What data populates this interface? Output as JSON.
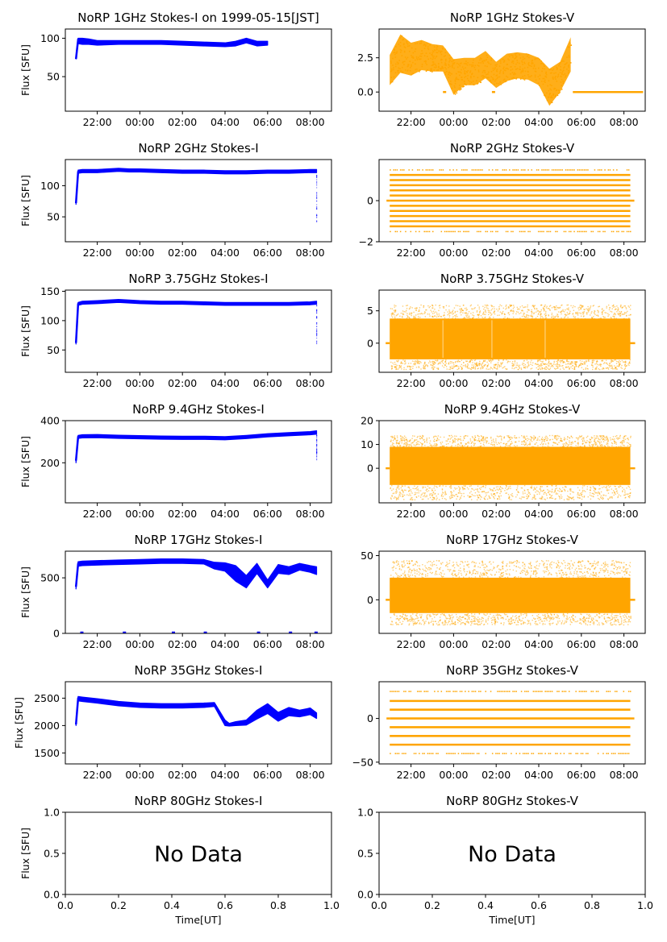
{
  "figure": {
    "series_colors": {
      "stokes_i": "#0000ff",
      "stokes_v": "#ffa500"
    },
    "ylabel": "Flux [SFU]",
    "xlabel": "Time[UT]"
  },
  "chart_data": [
    {
      "id": "p1i",
      "type": "scatter",
      "title": "NoRP 1GHz Stokes-I on 1999-05-15[JST]",
      "ylabel": "Flux [SFU]",
      "xlabel": "",
      "color": "#0000ff",
      "time_range_hours": [
        20.5,
        33.0
      ],
      "ylim": [
        5,
        112
      ],
      "yticks": [
        50,
        100
      ],
      "ytick_labels": [
        "50",
        "100"
      ],
      "xtick_labels": [
        "22:00",
        "00:00",
        "02:00",
        "04:00",
        "06:00",
        "08:00"
      ],
      "x": [
        21.0,
        21.1,
        21.3,
        21.6,
        22.0,
        23.0,
        24.0,
        25.0,
        26.0,
        27.0,
        28.0,
        28.5,
        29.0,
        29.5,
        30.0
      ],
      "y": [
        73,
        98,
        97,
        96,
        94,
        95,
        95,
        95,
        94,
        93,
        92,
        93,
        98,
        93,
        93
      ],
      "lower": [
        73,
        93,
        92,
        92,
        91,
        92,
        92,
        92,
        91,
        90,
        89,
        90,
        94,
        90,
        91
      ],
      "upper": [
        75,
        100,
        100,
        99,
        97,
        97,
        97,
        97,
        96,
        95,
        94,
        96,
        100,
        96,
        96
      ]
    },
    {
      "id": "p1v",
      "type": "scatter",
      "title": "NoRP 1GHz Stokes-V",
      "ylabel": "",
      "xlabel": "",
      "color": "#ffa500",
      "time_range_hours": [
        20.5,
        33.0
      ],
      "ylim": [
        -1.4,
        4.6
      ],
      "yticks": [
        0.0,
        2.5
      ],
      "ytick_labels": [
        "0.0",
        "2.5"
      ],
      "xtick_labels": [
        "22:00",
        "00:00",
        "02:00",
        "04:00",
        "06:00",
        "08:00"
      ],
      "x": [
        21.0,
        21.5,
        22.0,
        22.5,
        23.0,
        23.5,
        24.0,
        24.5,
        25.0,
        25.5,
        26.0,
        26.5,
        27.0,
        27.5,
        28.0,
        28.5,
        29.0,
        29.5
      ],
      "y": [
        1.5,
        2.7,
        2.2,
        2.6,
        2.5,
        2.4,
        1.0,
        1.5,
        1.5,
        2.0,
        1.2,
        1.8,
        1.9,
        1.8,
        1.5,
        0.5,
        1.0,
        2.5
      ],
      "lower": [
        0.5,
        1.4,
        1.2,
        1.6,
        1.5,
        1.5,
        -0.2,
        0.5,
        0.5,
        1.0,
        0.3,
        0.8,
        1.0,
        0.9,
        0.5,
        -1.0,
        0.0,
        1.5
      ],
      "upper": [
        2.7,
        4.2,
        3.6,
        3.8,
        3.5,
        3.4,
        2.4,
        2.5,
        2.5,
        3.0,
        2.2,
        2.8,
        2.9,
        2.8,
        2.5,
        1.7,
        2.2,
        4.0
      ],
      "flat_value": 0.0,
      "flat_segments": [
        [
          29.6,
          32.9
        ]
      ],
      "dashes": [
        23.5,
        25.8
      ]
    },
    {
      "id": "p2i",
      "type": "scatter",
      "title": "NoRP 2GHz Stokes-I",
      "ylabel": "Flux [SFU]",
      "xlabel": "",
      "color": "#0000ff",
      "time_range_hours": [
        20.5,
        33.0
      ],
      "ylim": [
        10,
        142
      ],
      "yticks": [
        50,
        100
      ],
      "ytick_labels": [
        "50",
        "100"
      ],
      "xtick_labels": [
        "22:00",
        "00:00",
        "02:00",
        "04:00",
        "06:00",
        "08:00"
      ],
      "x": [
        21.0,
        21.1,
        21.3,
        22.0,
        23.0,
        23.5,
        24.0,
        25.0,
        26.0,
        27.0,
        28.0,
        29.0,
        30.0,
        31.0,
        32.0,
        32.3
      ],
      "y": [
        72,
        122,
        123,
        123,
        125,
        124,
        124,
        123,
        122,
        122,
        121,
        121,
        122,
        122,
        123,
        123
      ],
      "lower": [
        70,
        120,
        121,
        121,
        123,
        122,
        122,
        121,
        120,
        120,
        119,
        119,
        120,
        120,
        121,
        121
      ],
      "upper": [
        75,
        125,
        126,
        126,
        128,
        127,
        127,
        126,
        125,
        125,
        124,
        124,
        125,
        125,
        126,
        126
      ],
      "outliers": {
        "x": 32.3,
        "from": 42,
        "to": 120
      }
    },
    {
      "id": "p2v",
      "type": "scatter",
      "title": "NoRP 2GHz Stokes-V",
      "ylabel": "",
      "xlabel": "",
      "color": "#ffa500",
      "time_range_hours": [
        20.5,
        33.0
      ],
      "ylim": [
        -2.0,
        2.0
      ],
      "yticks": [
        -2,
        0
      ],
      "ytick_labels": [
        "−2",
        "0"
      ],
      "xtick_labels": [
        "22:00",
        "00:00",
        "02:00",
        "04:00",
        "06:00",
        "08:00"
      ],
      "levels": [
        -1.25,
        -1.0,
        -0.75,
        -0.5,
        -0.25,
        0.0,
        0.25,
        0.5,
        0.75,
        1.0,
        1.25
      ],
      "sparse_levels": [
        -1.5,
        1.5
      ],
      "x_range": [
        21.0,
        32.3
      ]
    },
    {
      "id": "p3i",
      "type": "scatter",
      "title": "NoRP 3.75GHz Stokes-I",
      "ylabel": "Flux [SFU]",
      "xlabel": "",
      "color": "#0000ff",
      "time_range_hours": [
        20.5,
        33.0
      ],
      "ylim": [
        12,
        152
      ],
      "yticks": [
        50,
        100,
        150
      ],
      "ytick_labels": [
        "50",
        "100",
        "150"
      ],
      "xtick_labels": [
        "22:00",
        "00:00",
        "02:00",
        "04:00",
        "06:00",
        "08:00"
      ],
      "x": [
        21.0,
        21.1,
        21.3,
        22.0,
        23.0,
        24.0,
        25.0,
        26.0,
        27.0,
        28.0,
        29.0,
        30.0,
        31.0,
        32.0,
        32.3
      ],
      "y": [
        62,
        128,
        130,
        131,
        133,
        131,
        130,
        130,
        129,
        128,
        128,
        128,
        128,
        129,
        130
      ],
      "lower": [
        60,
        126,
        128,
        129,
        131,
        129,
        128,
        128,
        127,
        126,
        126,
        126,
        126,
        127,
        128
      ],
      "upper": [
        65,
        131,
        133,
        134,
        136,
        134,
        133,
        133,
        132,
        131,
        131,
        131,
        131,
        132,
        133
      ],
      "outliers": {
        "x": 32.3,
        "from": 60,
        "to": 128
      }
    },
    {
      "id": "p3v",
      "type": "scatter",
      "title": "NoRP 3.75GHz Stokes-V",
      "ylabel": "",
      "xlabel": "",
      "color": "#ffa500",
      "time_range_hours": [
        20.5,
        33.0
      ],
      "ylim": [
        -4.5,
        8.2
      ],
      "yticks": [
        0,
        5
      ],
      "ytick_labels": [
        "0",
        "5"
      ],
      "xtick_labels": [
        "22:00",
        "00:00",
        "02:00",
        "04:00",
        "06:00",
        "08:00"
      ],
      "x_range": [
        21.0,
        32.3
      ],
      "band": [
        -2.5,
        3.8
      ],
      "spread": [
        -4.0,
        6.0
      ],
      "gaps": [
        23.5,
        25.8,
        28.3
      ]
    },
    {
      "id": "p4i",
      "type": "scatter",
      "title": "NoRP 9.4GHz Stokes-I",
      "ylabel": "Flux [SFU]",
      "xlabel": "",
      "color": "#0000ff",
      "time_range_hours": [
        20.5,
        33.0
      ],
      "ylim": [
        10,
        400
      ],
      "yticks": [
        200,
        400
      ],
      "ytick_labels": [
        "200",
        "400"
      ],
      "xtick_labels": [
        "22:00",
        "00:00",
        "02:00",
        "04:00",
        "06:00",
        "08:00"
      ],
      "x": [
        21.0,
        21.1,
        21.3,
        22.0,
        23.0,
        24.0,
        25.0,
        26.0,
        27.0,
        28.0,
        29.0,
        30.0,
        31.0,
        32.0,
        32.3
      ],
      "y": [
        210,
        322,
        325,
        326,
        323,
        321,
        319,
        318,
        318,
        316,
        322,
        330,
        335,
        340,
        343
      ],
      "lower": [
        200,
        316,
        318,
        319,
        316,
        314,
        312,
        311,
        311,
        309,
        315,
        323,
        328,
        333,
        336
      ],
      "upper": [
        225,
        330,
        333,
        334,
        331,
        329,
        327,
        326,
        326,
        324,
        330,
        338,
        343,
        348,
        352
      ],
      "outliers": {
        "x": 32.3,
        "from": 215,
        "to": 335
      }
    },
    {
      "id": "p4v",
      "type": "scatter",
      "title": "NoRP 9.4GHz Stokes-V",
      "ylabel": "",
      "xlabel": "",
      "color": "#ffa500",
      "time_range_hours": [
        20.5,
        33.0
      ],
      "ylim": [
        -14.5,
        20
      ],
      "yticks": [
        0,
        10,
        20
      ],
      "ytick_labels": [
        "0",
        "10",
        "20"
      ],
      "xtick_labels": [
        "22:00",
        "00:00",
        "02:00",
        "04:00",
        "06:00",
        "08:00"
      ],
      "x_range": [
        21.0,
        32.3
      ],
      "band": [
        -7,
        9
      ],
      "spread": [
        -13,
        14
      ],
      "gaps": []
    },
    {
      "id": "p5i",
      "type": "scatter",
      "title": "NoRP 17GHz Stokes-I",
      "ylabel": "Flux [SFU]",
      "xlabel": "",
      "color": "#0000ff",
      "time_range_hours": [
        20.5,
        33.0
      ],
      "ylim": [
        0,
        740
      ],
      "yticks": [
        0,
        500
      ],
      "ytick_labels": [
        "0",
        "500"
      ],
      "xtick_labels": [
        "22:00",
        "00:00",
        "02:00",
        "04:00",
        "06:00",
        "08:00"
      ],
      "x": [
        21.0,
        21.1,
        21.3,
        22.0,
        23.0,
        24.0,
        25.0,
        26.0,
        27.0,
        27.5,
        28.0,
        28.5,
        29.0,
        29.5,
        30.0,
        30.5,
        31.0,
        31.5,
        32.0,
        32.3
      ],
      "y": [
        420,
        625,
        630,
        635,
        640,
        645,
        650,
        650,
        645,
        610,
        600,
        540,
        460,
        590,
        440,
        580,
        560,
        600,
        580,
        560
      ],
      "lower": [
        400,
        605,
        610,
        615,
        620,
        625,
        630,
        630,
        625,
        580,
        560,
        470,
        410,
        540,
        410,
        540,
        530,
        570,
        550,
        530
      ],
      "upper": [
        440,
        645,
        650,
        655,
        660,
        665,
        670,
        670,
        665,
        640,
        635,
        610,
        520,
        630,
        480,
        620,
        600,
        630,
        610,
        600
      ],
      "zero_dashes": [
        21.2,
        23.2,
        25.5,
        27.0,
        29.5,
        31.0,
        32.2
      ]
    },
    {
      "id": "p5v",
      "type": "scatter",
      "title": "NoRP 17GHz Stokes-V",
      "ylabel": "",
      "xlabel": "",
      "color": "#ffa500",
      "time_range_hours": [
        20.5,
        33.0
      ],
      "ylim": [
        -38,
        55
      ],
      "yticks": [
        0,
        50
      ],
      "ytick_labels": [
        "0",
        "50"
      ],
      "xtick_labels": [
        "22:00",
        "00:00",
        "02:00",
        "04:00",
        "06:00",
        "08:00"
      ],
      "x_range": [
        21.0,
        32.3
      ],
      "band": [
        -15,
        25
      ],
      "spread": [
        -28,
        45
      ],
      "gaps": []
    },
    {
      "id": "p6i",
      "type": "scatter",
      "title": "NoRP 35GHz Stokes-I",
      "ylabel": "Flux [SFU]",
      "xlabel": "",
      "color": "#0000ff",
      "time_range_hours": [
        20.5,
        33.0
      ],
      "ylim": [
        1300,
        2800
      ],
      "yticks": [
        1500,
        2000,
        2500
      ],
      "ytick_labels": [
        "1500",
        "2000",
        "2500"
      ],
      "xtick_labels": [
        "22:00",
        "00:00",
        "02:00",
        "04:00",
        "06:00",
        "08:00"
      ],
      "x": [
        21.0,
        21.1,
        21.3,
        22.0,
        23.0,
        24.0,
        25.0,
        26.0,
        27.0,
        27.5,
        28.0,
        28.2,
        28.5,
        29.0,
        29.5,
        30.0,
        30.5,
        31.0,
        31.5,
        32.0,
        32.3
      ],
      "y": [
        2020,
        2490,
        2480,
        2450,
        2400,
        2370,
        2360,
        2360,
        2370,
        2380,
        2050,
        2010,
        2030,
        2050,
        2200,
        2300,
        2150,
        2250,
        2220,
        2260,
        2180
      ],
      "lower": [
        2000,
        2450,
        2440,
        2410,
        2360,
        2330,
        2320,
        2320,
        2330,
        2350,
        2000,
        1990,
        2000,
        2010,
        2120,
        2220,
        2080,
        2180,
        2160,
        2200,
        2130
      ],
      "upper": [
        2040,
        2530,
        2520,
        2490,
        2440,
        2410,
        2400,
        2400,
        2410,
        2420,
        2100,
        2040,
        2070,
        2100,
        2280,
        2400,
        2240,
        2330,
        2280,
        2320,
        2230
      ]
    },
    {
      "id": "p6v",
      "type": "scatter",
      "title": "NoRP 35GHz Stokes-V",
      "ylabel": "",
      "xlabel": "",
      "color": "#ffa500",
      "time_range_hours": [
        20.5,
        33.0
      ],
      "ylim": [
        -52,
        42
      ],
      "yticks": [
        -50,
        0
      ],
      "ytick_labels": [
        "−50",
        "0"
      ],
      "xtick_labels": [
        "22:00",
        "00:00",
        "02:00",
        "04:00",
        "06:00",
        "08:00"
      ],
      "levels": [
        -30,
        -20,
        -10,
        0,
        10,
        20
      ],
      "sparse_levels": [
        -40,
        31
      ],
      "x_range": [
        21.0,
        32.3
      ]
    },
    {
      "id": "p7i",
      "type": "empty",
      "title": "NoRP 80GHz Stokes-I",
      "ylabel": "Flux [SFU]",
      "xlabel": "Time[UT]",
      "message": "No Data",
      "xlim": [
        0,
        1
      ],
      "ylim": [
        0,
        1
      ],
      "yticks": [
        0.0,
        0.5,
        1.0
      ],
      "ytick_labels": [
        "0.0",
        "0.5",
        "1.0"
      ],
      "xticks": [
        0.0,
        0.2,
        0.4,
        0.6,
        0.8,
        1.0
      ],
      "xtick_labels": [
        "0.0",
        "0.2",
        "0.4",
        "0.6",
        "0.8",
        "1.0"
      ]
    },
    {
      "id": "p7v",
      "type": "empty",
      "title": "NoRP 80GHz Stokes-V",
      "ylabel": "",
      "xlabel": "Time[UT]",
      "message": "No Data",
      "xlim": [
        0,
        1
      ],
      "ylim": [
        0,
        1
      ],
      "yticks": [
        0.0,
        0.5,
        1.0
      ],
      "ytick_labels": [
        "0.0",
        "0.5",
        "1.0"
      ],
      "xticks": [
        0.0,
        0.2,
        0.4,
        0.6,
        0.8,
        1.0
      ],
      "xtick_labels": [
        "0.0",
        "0.2",
        "0.4",
        "0.6",
        "0.8",
        "1.0"
      ]
    }
  ]
}
